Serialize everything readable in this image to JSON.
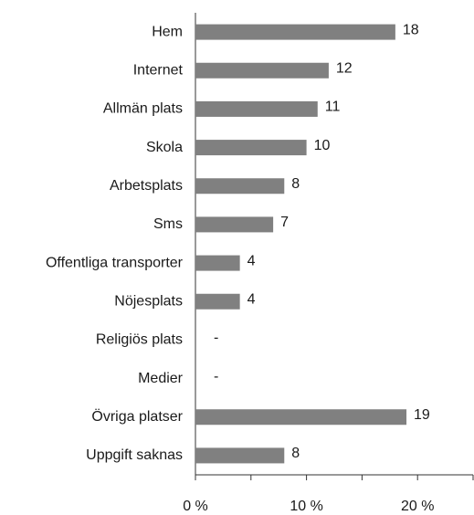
{
  "chart_data": {
    "type": "barh",
    "categories": [
      "Hem",
      "Internet",
      "Allmän plats",
      "Skola",
      "Arbetsplats",
      "Sms",
      "Offentliga transporter",
      "Nöjesplats",
      "Religiös plats",
      "Medier",
      "Övriga platser",
      "Uppgift saknas"
    ],
    "values": [
      18,
      12,
      11,
      10,
      8,
      7,
      4,
      4,
      null,
      null,
      19,
      8
    ],
    "value_labels": [
      "18",
      "12",
      "11",
      "10",
      "8",
      "7",
      "4",
      "4",
      "-",
      "-",
      "19",
      "8"
    ],
    "color": "#808080",
    "xlim": [
      0,
      25
    ],
    "xticks": [
      {
        "value": 0,
        "label": "0 %"
      },
      {
        "value": 10,
        "label": "10 %"
      },
      {
        "value": 20,
        "label": "20 %"
      }
    ],
    "xminorticks": [
      5,
      15,
      25
    ]
  }
}
